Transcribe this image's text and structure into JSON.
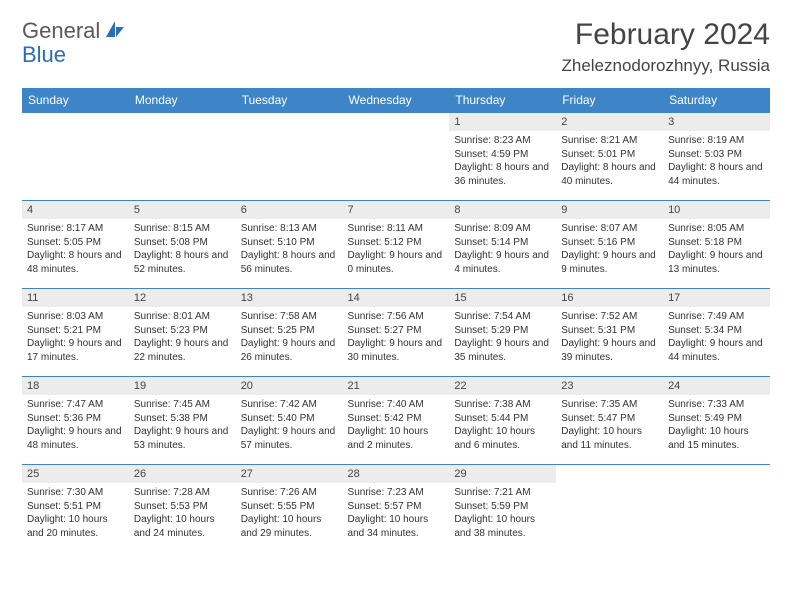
{
  "logo": {
    "text1": "General",
    "text2": "Blue"
  },
  "title": "February 2024",
  "location": "Zheleznodorozhnyy, Russia",
  "colors": {
    "header_bg": "#3d85c6",
    "header_text": "#ffffff",
    "daynum_bg": "#ececec",
    "border": "#3d85c6",
    "logo_blue": "#2a6fb5",
    "text": "#444444"
  },
  "weekdays": [
    "Sunday",
    "Monday",
    "Tuesday",
    "Wednesday",
    "Thursday",
    "Friday",
    "Saturday"
  ],
  "leading_blanks": 4,
  "days": [
    {
      "n": "1",
      "sr": "8:23 AM",
      "ss": "4:59 PM",
      "dl": "8 hours and 36 minutes."
    },
    {
      "n": "2",
      "sr": "8:21 AM",
      "ss": "5:01 PM",
      "dl": "8 hours and 40 minutes."
    },
    {
      "n": "3",
      "sr": "8:19 AM",
      "ss": "5:03 PM",
      "dl": "8 hours and 44 minutes."
    },
    {
      "n": "4",
      "sr": "8:17 AM",
      "ss": "5:05 PM",
      "dl": "8 hours and 48 minutes."
    },
    {
      "n": "5",
      "sr": "8:15 AM",
      "ss": "5:08 PM",
      "dl": "8 hours and 52 minutes."
    },
    {
      "n": "6",
      "sr": "8:13 AM",
      "ss": "5:10 PM",
      "dl": "8 hours and 56 minutes."
    },
    {
      "n": "7",
      "sr": "8:11 AM",
      "ss": "5:12 PM",
      "dl": "9 hours and 0 minutes."
    },
    {
      "n": "8",
      "sr": "8:09 AM",
      "ss": "5:14 PM",
      "dl": "9 hours and 4 minutes."
    },
    {
      "n": "9",
      "sr": "8:07 AM",
      "ss": "5:16 PM",
      "dl": "9 hours and 9 minutes."
    },
    {
      "n": "10",
      "sr": "8:05 AM",
      "ss": "5:18 PM",
      "dl": "9 hours and 13 minutes."
    },
    {
      "n": "11",
      "sr": "8:03 AM",
      "ss": "5:21 PM",
      "dl": "9 hours and 17 minutes."
    },
    {
      "n": "12",
      "sr": "8:01 AM",
      "ss": "5:23 PM",
      "dl": "9 hours and 22 minutes."
    },
    {
      "n": "13",
      "sr": "7:58 AM",
      "ss": "5:25 PM",
      "dl": "9 hours and 26 minutes."
    },
    {
      "n": "14",
      "sr": "7:56 AM",
      "ss": "5:27 PM",
      "dl": "9 hours and 30 minutes."
    },
    {
      "n": "15",
      "sr": "7:54 AM",
      "ss": "5:29 PM",
      "dl": "9 hours and 35 minutes."
    },
    {
      "n": "16",
      "sr": "7:52 AM",
      "ss": "5:31 PM",
      "dl": "9 hours and 39 minutes."
    },
    {
      "n": "17",
      "sr": "7:49 AM",
      "ss": "5:34 PM",
      "dl": "9 hours and 44 minutes."
    },
    {
      "n": "18",
      "sr": "7:47 AM",
      "ss": "5:36 PM",
      "dl": "9 hours and 48 minutes."
    },
    {
      "n": "19",
      "sr": "7:45 AM",
      "ss": "5:38 PM",
      "dl": "9 hours and 53 minutes."
    },
    {
      "n": "20",
      "sr": "7:42 AM",
      "ss": "5:40 PM",
      "dl": "9 hours and 57 minutes."
    },
    {
      "n": "21",
      "sr": "7:40 AM",
      "ss": "5:42 PM",
      "dl": "10 hours and 2 minutes."
    },
    {
      "n": "22",
      "sr": "7:38 AM",
      "ss": "5:44 PM",
      "dl": "10 hours and 6 minutes."
    },
    {
      "n": "23",
      "sr": "7:35 AM",
      "ss": "5:47 PM",
      "dl": "10 hours and 11 minutes."
    },
    {
      "n": "24",
      "sr": "7:33 AM",
      "ss": "5:49 PM",
      "dl": "10 hours and 15 minutes."
    },
    {
      "n": "25",
      "sr": "7:30 AM",
      "ss": "5:51 PM",
      "dl": "10 hours and 20 minutes."
    },
    {
      "n": "26",
      "sr": "7:28 AM",
      "ss": "5:53 PM",
      "dl": "10 hours and 24 minutes."
    },
    {
      "n": "27",
      "sr": "7:26 AM",
      "ss": "5:55 PM",
      "dl": "10 hours and 29 minutes."
    },
    {
      "n": "28",
      "sr": "7:23 AM",
      "ss": "5:57 PM",
      "dl": "10 hours and 34 minutes."
    },
    {
      "n": "29",
      "sr": "7:21 AM",
      "ss": "5:59 PM",
      "dl": "10 hours and 38 minutes."
    }
  ],
  "labels": {
    "sunrise": "Sunrise:",
    "sunset": "Sunset:",
    "daylight": "Daylight:"
  }
}
